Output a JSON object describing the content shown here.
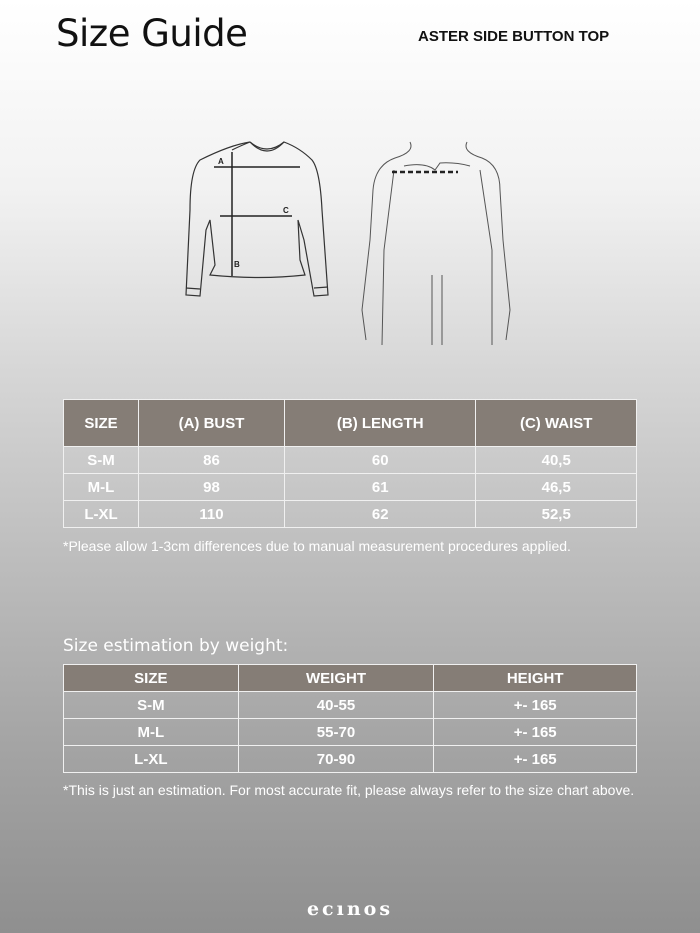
{
  "header": {
    "title": "Size Guide",
    "product": "ASTER SIDE BUTTON TOP"
  },
  "diagram": {
    "labels": [
      "A",
      "B",
      "C"
    ]
  },
  "measurements": {
    "columns": [
      "SIZE",
      "(A) BUST",
      "(B) LENGTH",
      "(C) WAIST"
    ],
    "rows": [
      [
        "S-M",
        "86",
        "60",
        "40,5"
      ],
      [
        "M-L",
        "98",
        "61",
        "46,5"
      ],
      [
        "L-XL",
        "110",
        "62",
        "52,5"
      ]
    ],
    "note": "*Please allow 1-3cm differences due to manual measurement procedures applied."
  },
  "estimation": {
    "label": "Size estimation by weight:",
    "columns": [
      "SIZE",
      "WEIGHT",
      "HEIGHT"
    ],
    "rows": [
      [
        "S-M",
        "40-55",
        "+- 165"
      ],
      [
        "M-L",
        "55-70",
        "+- 165"
      ],
      [
        "L-XL",
        "70-90",
        "+- 165"
      ]
    ],
    "note": "*This is just an estimation. For most accurate fit, please always refer to the size chart above."
  },
  "brand": {
    "logo": "ecınos"
  },
  "colors": {
    "header_cell": "#857d76",
    "text": "#ffffff"
  }
}
